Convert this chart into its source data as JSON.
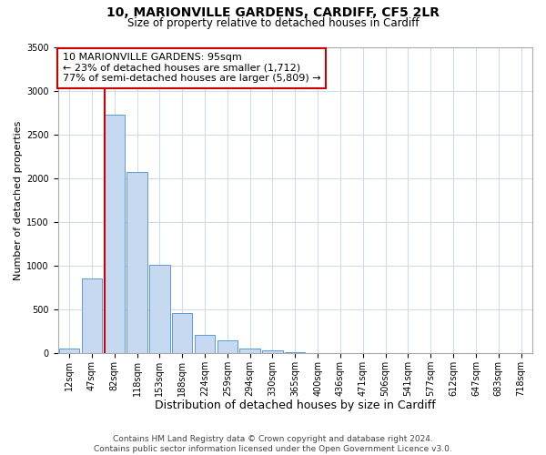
{
  "title1": "10, MARIONVILLE GARDENS, CARDIFF, CF5 2LR",
  "title2": "Size of property relative to detached houses in Cardiff",
  "xlabel": "Distribution of detached houses by size in Cardiff",
  "ylabel": "Number of detached properties",
  "bin_labels": [
    "12sqm",
    "47sqm",
    "82sqm",
    "118sqm",
    "153sqm",
    "188sqm",
    "224sqm",
    "259sqm",
    "294sqm",
    "330sqm",
    "365sqm",
    "400sqm",
    "436sqm",
    "471sqm",
    "506sqm",
    "541sqm",
    "577sqm",
    "612sqm",
    "647sqm",
    "683sqm",
    "718sqm"
  ],
  "bar_heights": [
    50,
    850,
    2725,
    2075,
    1010,
    455,
    205,
    145,
    55,
    30,
    15,
    5,
    2,
    1,
    0,
    0,
    0,
    0,
    0,
    0,
    0
  ],
  "bar_color": "#c6d9f0",
  "bar_edge_color": "#5b9bd5",
  "vline_color": "#cc0000",
  "annotation_text": "10 MARIONVILLE GARDENS: 95sqm\n← 23% of detached houses are smaller (1,712)\n77% of semi-detached houses are larger (5,809) →",
  "annotation_box_color": "#ffffff",
  "annotation_box_edge": "#cc0000",
  "ylim": [
    0,
    3500
  ],
  "yticks": [
    0,
    500,
    1000,
    1500,
    2000,
    2500,
    3000,
    3500
  ],
  "footnote1": "Contains HM Land Registry data © Crown copyright and database right 2024.",
  "footnote2": "Contains public sector information licensed under the Open Government Licence v3.0.",
  "bg_color": "#ffffff",
  "grid_color": "#d0dce8",
  "title1_fontsize": 10,
  "title2_fontsize": 8.5,
  "xlabel_fontsize": 9,
  "ylabel_fontsize": 8,
  "tick_fontsize": 7,
  "annotation_fontsize": 8,
  "footnote_fontsize": 6.5
}
